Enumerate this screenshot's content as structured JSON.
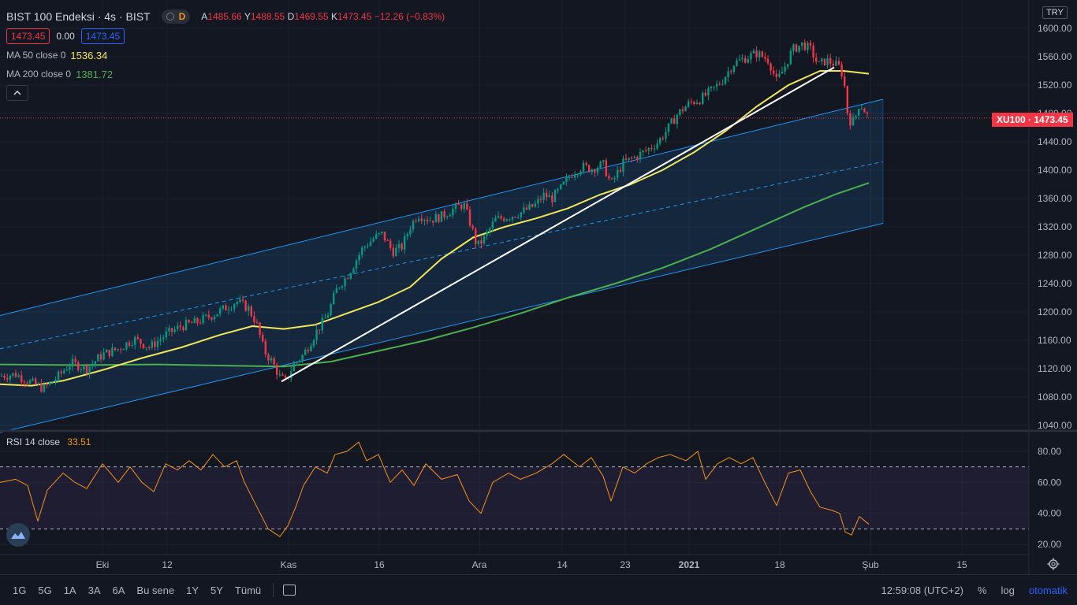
{
  "header": {
    "title": "BIST 100 Endeksi · 4s · BIST",
    "mode_badge": "D",
    "ohlc": [
      {
        "k": "A",
        "v": "1485.66"
      },
      {
        "k": "Y",
        "v": "1488.55"
      },
      {
        "k": "D",
        "v": "1469.55"
      },
      {
        "k": "K",
        "v": "1473.45"
      }
    ],
    "change": "−12.26 (−0.83%)",
    "bid": "1473.45",
    "spread": "0.00",
    "ask": "1473.45"
  },
  "indicators": {
    "ma50": {
      "label": "MA 50 close 0",
      "value": "1536.34",
      "color": "#f1e65b"
    },
    "ma200": {
      "label": "MA 200 close 0",
      "value": "1381.72",
      "color": "#4caf50"
    },
    "rsi": {
      "label": "RSI 14 close",
      "value": "33.51",
      "color": "#f7931a"
    }
  },
  "currency": "TRY",
  "last_price_tag": "XU100 · 1473.45",
  "colors": {
    "up": "#089981",
    "down": "#f23645",
    "channel": "#2196f3",
    "trendline": "#ffffff",
    "background": "#131722"
  },
  "chart_data": [
    {
      "type": "candlestick",
      "title": "BIST 100 Endeksi · 4s · BIST",
      "y_ticks": [
        "1640.00",
        "1600.00",
        "1560.00",
        "1520.00",
        "1480.00",
        "1440.00",
        "1400.00",
        "1360.00",
        "1320.00",
        "1280.00",
        "1240.00",
        "1200.00",
        "1160.00",
        "1120.00",
        "1080.00",
        "1040.00"
      ],
      "ylim": [
        1040,
        1640
      ],
      "x_ticks": [
        "Eki",
        "12",
        "Kas",
        "16",
        "Ara",
        "14",
        "23",
        "2021",
        "18",
        "Şub",
        "15"
      ],
      "price_path": [
        [
          0,
          1110
        ],
        [
          20,
          1112
        ],
        [
          40,
          1100
        ],
        [
          55,
          1092
        ],
        [
          70,
          1105
        ],
        [
          90,
          1128
        ],
        [
          110,
          1120
        ],
        [
          130,
          1140
        ],
        [
          150,
          1148
        ],
        [
          170,
          1162
        ],
        [
          190,
          1150
        ],
        [
          210,
          1168
        ],
        [
          230,
          1180
        ],
        [
          250,
          1186
        ],
        [
          270,
          1196
        ],
        [
          285,
          1205
        ],
        [
          300,
          1215
        ],
        [
          315,
          1205
        ],
        [
          325,
          1185
        ],
        [
          335,
          1145
        ],
        [
          345,
          1130
        ],
        [
          355,
          1108
        ],
        [
          362,
          1102
        ],
        [
          372,
          1125
        ],
        [
          385,
          1140
        ],
        [
          400,
          1170
        ],
        [
          415,
          1195
        ],
        [
          428,
          1235
        ],
        [
          440,
          1250
        ],
        [
          450,
          1270
        ],
        [
          460,
          1290
        ],
        [
          475,
          1305
        ],
        [
          485,
          1310
        ],
        [
          498,
          1285
        ],
        [
          510,
          1292
        ],
        [
          520,
          1320
        ],
        [
          530,
          1338
        ],
        [
          545,
          1330
        ],
        [
          560,
          1335
        ],
        [
          575,
          1345
        ],
        [
          588,
          1352
        ],
        [
          598,
          1320
        ],
        [
          605,
          1292
        ],
        [
          615,
          1305
        ],
        [
          628,
          1330
        ],
        [
          645,
          1335
        ],
        [
          660,
          1340
        ],
        [
          678,
          1350
        ],
        [
          690,
          1365
        ],
        [
          700,
          1360
        ],
        [
          712,
          1375
        ],
        [
          725,
          1395
        ],
        [
          738,
          1405
        ],
        [
          750,
          1402
        ],
        [
          765,
          1408
        ],
        [
          775,
          1380
        ],
        [
          790,
          1410
        ],
        [
          805,
          1418
        ],
        [
          820,
          1428
        ],
        [
          835,
          1440
        ],
        [
          848,
          1460
        ],
        [
          860,
          1480
        ],
        [
          875,
          1495
        ],
        [
          888,
          1500
        ],
        [
          900,
          1510
        ],
        [
          915,
          1525
        ],
        [
          930,
          1550
        ],
        [
          945,
          1558
        ],
        [
          960,
          1565
        ],
        [
          975,
          1555
        ],
        [
          985,
          1525
        ],
        [
          995,
          1545
        ],
        [
          1005,
          1570
        ],
        [
          1018,
          1578
        ],
        [
          1028,
          1570
        ],
        [
          1038,
          1548
        ],
        [
          1048,
          1555
        ],
        [
          1058,
          1550
        ],
        [
          1065,
          1545
        ],
        [
          1070,
          1530
        ],
        [
          1075,
          1480
        ],
        [
          1080,
          1465
        ],
        [
          1085,
          1475
        ],
        [
          1090,
          1495
        ],
        [
          1096,
          1485
        ],
        [
          1102,
          1473
        ]
      ],
      "ma50_path": [
        [
          0,
          1098
        ],
        [
          40,
          1096
        ],
        [
          80,
          1103
        ],
        [
          130,
          1118
        ],
        [
          180,
          1135
        ],
        [
          230,
          1150
        ],
        [
          280,
          1168
        ],
        [
          320,
          1180
        ],
        [
          360,
          1176
        ],
        [
          400,
          1182
        ],
        [
          440,
          1198
        ],
        [
          480,
          1214
        ],
        [
          520,
          1235
        ],
        [
          560,
          1275
        ],
        [
          600,
          1305
        ],
        [
          640,
          1320
        ],
        [
          680,
          1332
        ],
        [
          720,
          1346
        ],
        [
          760,
          1365
        ],
        [
          800,
          1380
        ],
        [
          840,
          1400
        ],
        [
          880,
          1425
        ],
        [
          920,
          1455
        ],
        [
          960,
          1490
        ],
        [
          1000,
          1520
        ],
        [
          1040,
          1540
        ],
        [
          1070,
          1540
        ],
        [
          1102,
          1536
        ]
      ],
      "ma200_path": [
        [
          0,
          1126
        ],
        [
          100,
          1125
        ],
        [
          200,
          1126
        ],
        [
          300,
          1124
        ],
        [
          360,
          1123
        ],
        [
          420,
          1130
        ],
        [
          480,
          1145
        ],
        [
          540,
          1160
        ],
        [
          600,
          1178
        ],
        [
          660,
          1198
        ],
        [
          720,
          1220
        ],
        [
          780,
          1240
        ],
        [
          840,
          1262
        ],
        [
          900,
          1288
        ],
        [
          960,
          1318
        ],
        [
          1020,
          1348
        ],
        [
          1060,
          1366
        ],
        [
          1102,
          1382
        ]
      ],
      "channel": {
        "upper": [
          [
            0,
            1195
          ],
          [
            1120,
            1500
          ]
        ],
        "middle": [
          [
            0,
            1148
          ],
          [
            1120,
            1412
          ]
        ],
        "lower": [
          [
            0,
            1030
          ],
          [
            1120,
            1325
          ]
        ]
      },
      "trendline": [
        [
          357,
          1102
        ],
        [
          1058,
          1545
        ]
      ]
    },
    {
      "type": "line",
      "title": "RSI 14 close",
      "y_ticks": [
        "80.00",
        "60.00",
        "40.00",
        "20.00"
      ],
      "ylim": [
        20,
        85
      ],
      "bands": [
        30,
        70
      ],
      "values": [
        [
          0,
          60
        ],
        [
          20,
          62
        ],
        [
          35,
          58
        ],
        [
          48,
          35
        ],
        [
          60,
          55
        ],
        [
          80,
          66
        ],
        [
          95,
          60
        ],
        [
          110,
          56
        ],
        [
          130,
          72
        ],
        [
          150,
          60
        ],
        [
          165,
          70
        ],
        [
          180,
          60
        ],
        [
          195,
          54
        ],
        [
          210,
          72
        ],
        [
          225,
          68
        ],
        [
          240,
          74
        ],
        [
          255,
          68
        ],
        [
          270,
          78
        ],
        [
          285,
          70
        ],
        [
          300,
          74
        ],
        [
          310,
          60
        ],
        [
          325,
          45
        ],
        [
          340,
          30
        ],
        [
          355,
          25
        ],
        [
          365,
          32
        ],
        [
          375,
          44
        ],
        [
          385,
          58
        ],
        [
          400,
          70
        ],
        [
          415,
          66
        ],
        [
          425,
          78
        ],
        [
          440,
          80
        ],
        [
          455,
          86
        ],
        [
          465,
          74
        ],
        [
          480,
          78
        ],
        [
          495,
          60
        ],
        [
          510,
          68
        ],
        [
          525,
          58
        ],
        [
          540,
          72
        ],
        [
          560,
          62
        ],
        [
          580,
          65
        ],
        [
          595,
          48
        ],
        [
          610,
          40
        ],
        [
          625,
          60
        ],
        [
          645,
          66
        ],
        [
          660,
          62
        ],
        [
          680,
          66
        ],
        [
          700,
          72
        ],
        [
          715,
          78
        ],
        [
          735,
          70
        ],
        [
          750,
          76
        ],
        [
          765,
          64
        ],
        [
          775,
          48
        ],
        [
          790,
          70
        ],
        [
          805,
          66
        ],
        [
          820,
          72
        ],
        [
          835,
          76
        ],
        [
          850,
          78
        ],
        [
          870,
          74
        ],
        [
          885,
          80
        ],
        [
          895,
          62
        ],
        [
          910,
          72
        ],
        [
          925,
          76
        ],
        [
          940,
          72
        ],
        [
          955,
          76
        ],
        [
          970,
          60
        ],
        [
          985,
          45
        ],
        [
          1000,
          66
        ],
        [
          1015,
          68
        ],
        [
          1028,
          54
        ],
        [
          1040,
          44
        ],
        [
          1055,
          42
        ],
        [
          1065,
          40
        ],
        [
          1072,
          28
        ],
        [
          1080,
          26
        ],
        [
          1090,
          38
        ],
        [
          1102,
          33
        ]
      ]
    }
  ],
  "bottom_bar": {
    "timeframes": [
      "1G",
      "5G",
      "1A",
      "3A",
      "6A",
      "Bu sene",
      "1Y",
      "5Y",
      "Tümü"
    ],
    "clock": "12:59:08 (UTC+2)",
    "percent": "%",
    "log": "log",
    "auto": "otomatik"
  }
}
